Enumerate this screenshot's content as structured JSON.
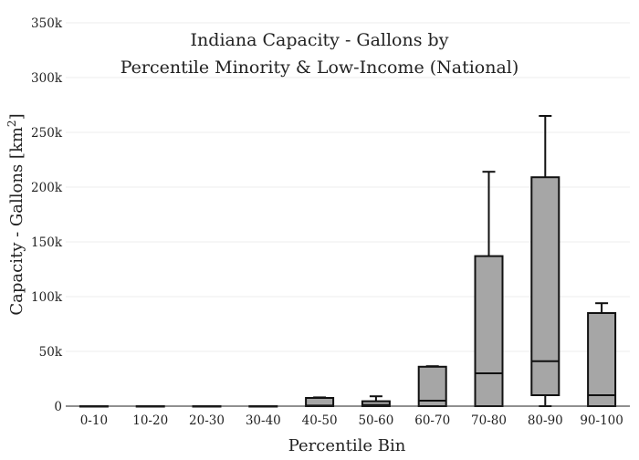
{
  "chart_data": {
    "type": "box",
    "title_line1": "Indiana Capacity - Gallons by",
    "title_line2": "Percentile Minority & Low-Income (National)",
    "xlabel": "Percentile Bin",
    "ylabel_main": "Capacity - Gallons  [km",
    "ylabel_sup": "2",
    "ylabel_close": "]",
    "ylim": [
      0,
      350000
    ],
    "y_ticks": [
      {
        "value": 0,
        "label": "0"
      },
      {
        "value": 50000,
        "label": "50k"
      },
      {
        "value": 100000,
        "label": "100k"
      },
      {
        "value": 150000,
        "label": "150k"
      },
      {
        "value": 200000,
        "label": "200k"
      },
      {
        "value": 250000,
        "label": "250k"
      },
      {
        "value": 300000,
        "label": "300k"
      },
      {
        "value": 350000,
        "label": "350k"
      }
    ],
    "grid": true,
    "categories": [
      "0-10",
      "10-20",
      "20-30",
      "30-40",
      "40-50",
      "50-60",
      "60-70",
      "70-80",
      "80-90",
      "90-100"
    ],
    "boxes": [
      {
        "min": 0,
        "q1": 0,
        "median": 0,
        "q3": 0,
        "max": 0
      },
      {
        "min": 0,
        "q1": 0,
        "median": 0,
        "q3": 0,
        "max": 0
      },
      {
        "min": 0,
        "q1": 0,
        "median": 0,
        "q3": 0,
        "max": 0
      },
      {
        "min": 0,
        "q1": 0,
        "median": 0,
        "q3": 0,
        "max": 0
      },
      {
        "min": 0,
        "q1": 0,
        "median": 500,
        "q3": 7500,
        "max": 8000
      },
      {
        "min": 0,
        "q1": 0,
        "median": 1000,
        "q3": 4500,
        "max": 9000
      },
      {
        "min": 0,
        "q1": 0,
        "median": 5000,
        "q3": 36000,
        "max": 36500
      },
      {
        "min": 0,
        "q1": 0,
        "median": 30000,
        "q3": 137000,
        "max": 214000
      },
      {
        "min": 0,
        "q1": 10000,
        "median": 41000,
        "q3": 209000,
        "max": 265000
      },
      {
        "min": 0,
        "q1": 0,
        "median": 10000,
        "q3": 85000,
        "max": 94000
      }
    ],
    "colors": {
      "box_fill": "#a6a6a6",
      "box_stroke": "#111111",
      "grid": "#ececec"
    }
  }
}
